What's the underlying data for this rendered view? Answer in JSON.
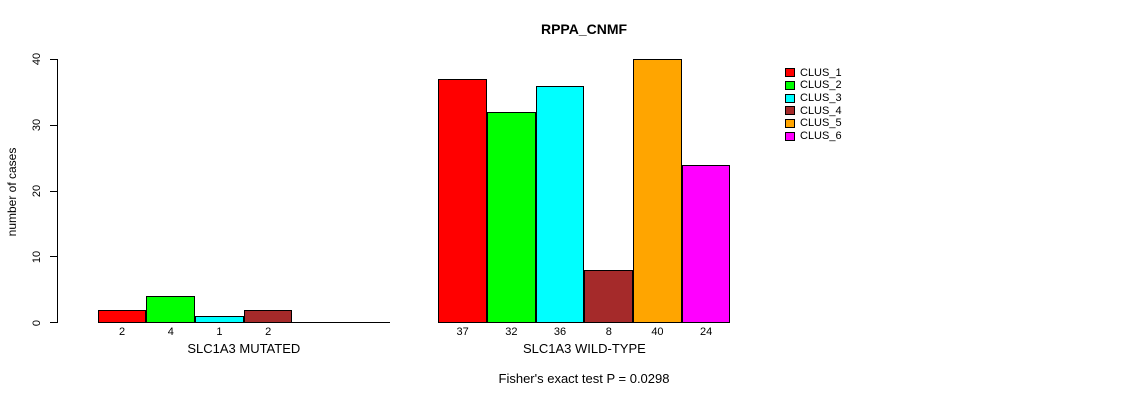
{
  "title": "RPPA_CNMF",
  "subtitle": "Fisher's exact test P = 0.0298",
  "y_axis": {
    "label": "number of cases",
    "ticks": [
      "0",
      "10",
      "20",
      "30",
      "40"
    ],
    "tick_values": [
      0,
      10,
      20,
      30,
      40
    ]
  },
  "legend": {
    "position": "right",
    "items": [
      {
        "label": "CLUS_1",
        "color": "#FF0000"
      },
      {
        "label": "CLUS_2",
        "color": "#00FF00"
      },
      {
        "label": "CLUS_3",
        "color": "#00FFFF"
      },
      {
        "label": "CLUS_4",
        "color": "#A52A2A"
      },
      {
        "label": "CLUS_5",
        "color": "#FFA500"
      },
      {
        "label": "CLUS_6",
        "color": "#FF00FF"
      }
    ]
  },
  "chart_data": {
    "type": "bar",
    "title": "RPPA_CNMF",
    "xlabel": "",
    "ylabel": "number of cases",
    "ylim": [
      0,
      40
    ],
    "yticks": [
      0,
      10,
      20,
      30,
      40
    ],
    "grid": false,
    "legend_position": "right",
    "annotation": "Fisher's exact test P = 0.0298",
    "categories": [
      "SLC1A3 MUTATED",
      "SLC1A3 WILD-TYPE"
    ],
    "series": [
      {
        "name": "CLUS_1",
        "color": "#FF0000",
        "values": [
          2,
          37
        ]
      },
      {
        "name": "CLUS_2",
        "color": "#00FF00",
        "values": [
          4,
          32
        ]
      },
      {
        "name": "CLUS_3",
        "color": "#00FFFF",
        "values": [
          1,
          36
        ]
      },
      {
        "name": "CLUS_4",
        "color": "#A52A2A",
        "values": [
          2,
          8
        ]
      },
      {
        "name": "CLUS_5",
        "color": "#FFA500",
        "values": [
          0,
          40
        ]
      },
      {
        "name": "CLUS_6",
        "color": "#FF00FF",
        "values": [
          0,
          24
        ]
      }
    ],
    "groups": [
      {
        "label": "SLC1A3 MUTATED",
        "slots": 6,
        "values": [
          2,
          4,
          1,
          2
        ],
        "bar_labels": [
          "2",
          "4",
          "1",
          "2"
        ],
        "colors": [
          "#FF0000",
          "#00FF00",
          "#00FFFF",
          "#A52A2A"
        ]
      },
      {
        "label": "SLC1A3 WILD-TYPE",
        "slots": 6,
        "values": [
          37,
          32,
          36,
          8,
          40,
          24
        ],
        "bar_labels": [
          "37",
          "32",
          "36",
          "8",
          "40",
          "24"
        ],
        "colors": [
          "#FF0000",
          "#00FF00",
          "#00FFFF",
          "#A52A2A",
          "#FFA500",
          "#FF00FF"
        ]
      }
    ]
  }
}
